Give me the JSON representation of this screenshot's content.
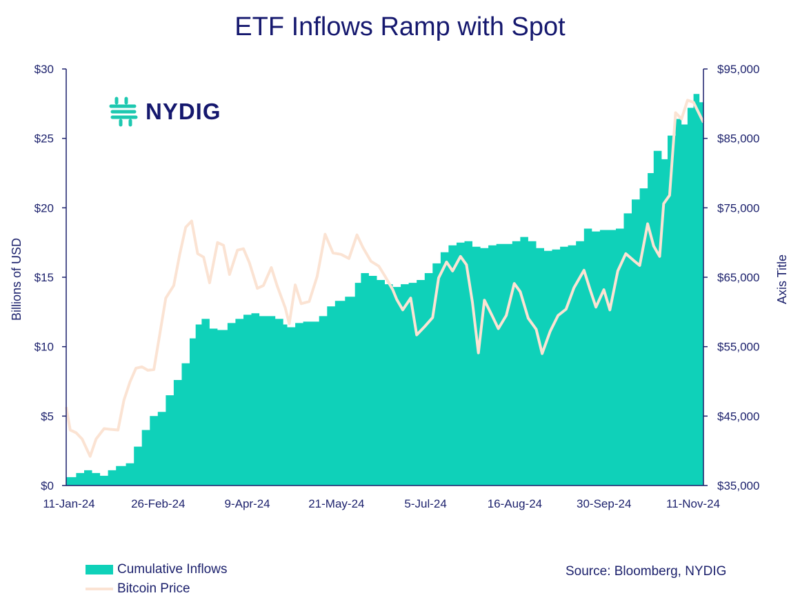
{
  "title": "ETF Inflows Ramp with Spot",
  "source": "Source: Bloomberg, NYDIG",
  "logo": {
    "text": "NYDIG",
    "icon": "nydig-logo-icon",
    "icon_color": "#1ec8b0"
  },
  "colors": {
    "inflows": "#0fd1b9",
    "price": "#fbe3d3",
    "text": "#1a1f6b",
    "axis": "#1a1f6b"
  },
  "chart_data": {
    "type": "area",
    "title": "ETF Inflows Ramp with Spot",
    "x_tick_labels": [
      "11-Jan-24",
      "26-Feb-24",
      "9-Apr-24",
      "21-May-24",
      "5-Jul-24",
      "16-Aug-24",
      "30-Sep-24",
      "11-Nov-24"
    ],
    "x_range": [
      "2024-01-11",
      "2024-11-26"
    ],
    "ylabel_left": "Billions of USD",
    "ylabel_right": "Axis Title",
    "ylim_left": [
      0,
      30
    ],
    "ylim_right": [
      35000,
      95000
    ],
    "yticks_left": [
      "$0",
      "$5",
      "$10",
      "$15",
      "$20",
      "$25",
      "$30"
    ],
    "yticks_right": [
      "$35,000",
      "$45,000",
      "$55,000",
      "$65,000",
      "$75,000",
      "$85,000",
      "$95,000"
    ],
    "legend_position": "bottom-left",
    "grid": false,
    "series": [
      {
        "name": "Cumulative Inflows",
        "type": "area",
        "axis": "left",
        "points": [
          [
            "2024-01-11",
            0.6
          ],
          [
            "2024-01-16",
            0.9
          ],
          [
            "2024-01-20",
            1.1
          ],
          [
            "2024-01-24",
            0.9
          ],
          [
            "2024-01-28",
            0.7
          ],
          [
            "2024-02-01",
            1.1
          ],
          [
            "2024-02-05",
            1.4
          ],
          [
            "2024-02-10",
            1.6
          ],
          [
            "2024-02-14",
            2.8
          ],
          [
            "2024-02-18",
            4.0
          ],
          [
            "2024-02-22",
            5.0
          ],
          [
            "2024-02-26",
            5.3
          ],
          [
            "2024-03-01",
            6.5
          ],
          [
            "2024-03-05",
            7.6
          ],
          [
            "2024-03-09",
            8.8
          ],
          [
            "2024-03-13",
            10.6
          ],
          [
            "2024-03-16",
            11.6
          ],
          [
            "2024-03-19",
            12.0
          ],
          [
            "2024-03-23",
            11.3
          ],
          [
            "2024-03-27",
            11.2
          ],
          [
            "2024-04-01",
            11.7
          ],
          [
            "2024-04-05",
            12.0
          ],
          [
            "2024-04-09",
            12.3
          ],
          [
            "2024-04-13",
            12.4
          ],
          [
            "2024-04-17",
            12.2
          ],
          [
            "2024-04-21",
            12.2
          ],
          [
            "2024-04-25",
            12.0
          ],
          [
            "2024-04-29",
            11.6
          ],
          [
            "2024-05-01",
            11.4
          ],
          [
            "2024-05-05",
            11.7
          ],
          [
            "2024-05-09",
            11.8
          ],
          [
            "2024-05-13",
            11.8
          ],
          [
            "2024-05-17",
            12.2
          ],
          [
            "2024-05-21",
            12.9
          ],
          [
            "2024-05-25",
            13.3
          ],
          [
            "2024-05-30",
            13.6
          ],
          [
            "2024-06-04",
            14.6
          ],
          [
            "2024-06-07",
            15.3
          ],
          [
            "2024-06-11",
            15.1
          ],
          [
            "2024-06-15",
            14.8
          ],
          [
            "2024-06-19",
            14.5
          ],
          [
            "2024-06-23",
            14.3
          ],
          [
            "2024-06-27",
            14.5
          ],
          [
            "2024-07-01",
            14.6
          ],
          [
            "2024-07-05",
            14.8
          ],
          [
            "2024-07-09",
            15.3
          ],
          [
            "2024-07-13",
            16.0
          ],
          [
            "2024-07-17",
            16.8
          ],
          [
            "2024-07-21",
            17.3
          ],
          [
            "2024-07-25",
            17.5
          ],
          [
            "2024-07-29",
            17.6
          ],
          [
            "2024-08-02",
            17.2
          ],
          [
            "2024-08-06",
            17.1
          ],
          [
            "2024-08-10",
            17.3
          ],
          [
            "2024-08-14",
            17.4
          ],
          [
            "2024-08-18",
            17.4
          ],
          [
            "2024-08-22",
            17.6
          ],
          [
            "2024-08-26",
            17.9
          ],
          [
            "2024-08-30",
            17.6
          ],
          [
            "2024-09-03",
            17.1
          ],
          [
            "2024-09-07",
            16.9
          ],
          [
            "2024-09-11",
            17.0
          ],
          [
            "2024-09-15",
            17.2
          ],
          [
            "2024-09-19",
            17.3
          ],
          [
            "2024-09-23",
            17.6
          ],
          [
            "2024-09-27",
            18.5
          ],
          [
            "2024-10-01",
            18.3
          ],
          [
            "2024-10-05",
            18.4
          ],
          [
            "2024-10-09",
            18.4
          ],
          [
            "2024-10-13",
            18.5
          ],
          [
            "2024-10-17",
            19.6
          ],
          [
            "2024-10-21",
            20.6
          ],
          [
            "2024-10-25",
            21.4
          ],
          [
            "2024-10-29",
            22.5
          ],
          [
            "2024-11-01",
            24.1
          ],
          [
            "2024-11-05",
            23.5
          ],
          [
            "2024-11-08",
            25.2
          ],
          [
            "2024-11-12",
            26.4
          ],
          [
            "2024-11-15",
            26.0
          ],
          [
            "2024-11-18",
            27.2
          ],
          [
            "2024-11-21",
            28.2
          ],
          [
            "2024-11-24",
            27.6
          ],
          [
            "2024-11-26",
            27.0
          ]
        ]
      },
      {
        "name": "Bitcoin Price",
        "type": "line",
        "axis": "right",
        "points": [
          [
            "2024-01-11",
            46300
          ],
          [
            "2024-01-13",
            43000
          ],
          [
            "2024-01-16",
            42600
          ],
          [
            "2024-01-19",
            41700
          ],
          [
            "2024-01-23",
            39200
          ],
          [
            "2024-01-26",
            41700
          ],
          [
            "2024-01-30",
            43200
          ],
          [
            "2024-02-02",
            43100
          ],
          [
            "2024-02-06",
            43000
          ],
          [
            "2024-02-09",
            47300
          ],
          [
            "2024-02-12",
            49900
          ],
          [
            "2024-02-15",
            51900
          ],
          [
            "2024-02-18",
            52100
          ],
          [
            "2024-02-21",
            51600
          ],
          [
            "2024-02-24",
            51700
          ],
          [
            "2024-02-27",
            56800
          ],
          [
            "2024-03-01",
            62000
          ],
          [
            "2024-03-05",
            63800
          ],
          [
            "2024-03-08",
            68300
          ],
          [
            "2024-03-11",
            72200
          ],
          [
            "2024-03-14",
            73100
          ],
          [
            "2024-03-17",
            68400
          ],
          [
            "2024-03-20",
            67900
          ],
          [
            "2024-03-23",
            64200
          ],
          [
            "2024-03-27",
            70000
          ],
          [
            "2024-03-30",
            69600
          ],
          [
            "2024-04-02",
            65400
          ],
          [
            "2024-04-06",
            68900
          ],
          [
            "2024-04-09",
            69100
          ],
          [
            "2024-04-12",
            67100
          ],
          [
            "2024-04-16",
            63400
          ],
          [
            "2024-04-19",
            63800
          ],
          [
            "2024-04-23",
            66400
          ],
          [
            "2024-04-26",
            63700
          ],
          [
            "2024-04-30",
            60600
          ],
          [
            "2024-05-02",
            58300
          ],
          [
            "2024-05-05",
            63900
          ],
          [
            "2024-05-08",
            61200
          ],
          [
            "2024-05-12",
            61500
          ],
          [
            "2024-05-16",
            65100
          ],
          [
            "2024-05-20",
            71200
          ],
          [
            "2024-05-24",
            68500
          ],
          [
            "2024-05-28",
            68300
          ],
          [
            "2024-06-01",
            67700
          ],
          [
            "2024-06-05",
            71100
          ],
          [
            "2024-06-08",
            69300
          ],
          [
            "2024-06-12",
            67300
          ],
          [
            "2024-06-16",
            66600
          ],
          [
            "2024-06-19",
            65200
          ],
          [
            "2024-06-23",
            63200
          ],
          [
            "2024-06-25",
            61800
          ],
          [
            "2024-06-28",
            60300
          ],
          [
            "2024-07-02",
            62000
          ],
          [
            "2024-07-05",
            56700
          ],
          [
            "2024-07-09",
            57900
          ],
          [
            "2024-07-13",
            59200
          ],
          [
            "2024-07-16",
            64900
          ],
          [
            "2024-07-20",
            67200
          ],
          [
            "2024-07-23",
            65900
          ],
          [
            "2024-07-27",
            68000
          ],
          [
            "2024-07-30",
            66800
          ],
          [
            "2024-08-02",
            61400
          ],
          [
            "2024-08-05",
            54100
          ],
          [
            "2024-08-08",
            61700
          ],
          [
            "2024-08-12",
            59400
          ],
          [
            "2024-08-15",
            57600
          ],
          [
            "2024-08-19",
            59500
          ],
          [
            "2024-08-23",
            64100
          ],
          [
            "2024-08-26",
            62900
          ],
          [
            "2024-08-30",
            59100
          ],
          [
            "2024-09-03",
            57500
          ],
          [
            "2024-09-06",
            54000
          ],
          [
            "2024-09-10",
            57200
          ],
          [
            "2024-09-14",
            59500
          ],
          [
            "2024-09-18",
            60400
          ],
          [
            "2024-09-22",
            63500
          ],
          [
            "2024-09-27",
            66000
          ],
          [
            "2024-09-30",
            63300
          ],
          [
            "2024-10-03",
            60700
          ],
          [
            "2024-10-07",
            63200
          ],
          [
            "2024-10-10",
            60300
          ],
          [
            "2024-10-14",
            65900
          ],
          [
            "2024-10-18",
            68400
          ],
          [
            "2024-10-22",
            67400
          ],
          [
            "2024-10-25",
            66700
          ],
          [
            "2024-10-29",
            72700
          ],
          [
            "2024-11-01",
            69500
          ],
          [
            "2024-11-04",
            68000
          ],
          [
            "2024-11-06",
            75600
          ],
          [
            "2024-11-09",
            76800
          ],
          [
            "2024-11-12",
            88700
          ],
          [
            "2024-11-15",
            87800
          ],
          [
            "2024-11-18",
            90500
          ],
          [
            "2024-11-21",
            90200
          ],
          [
            "2024-11-26",
            87300
          ]
        ]
      }
    ]
  }
}
